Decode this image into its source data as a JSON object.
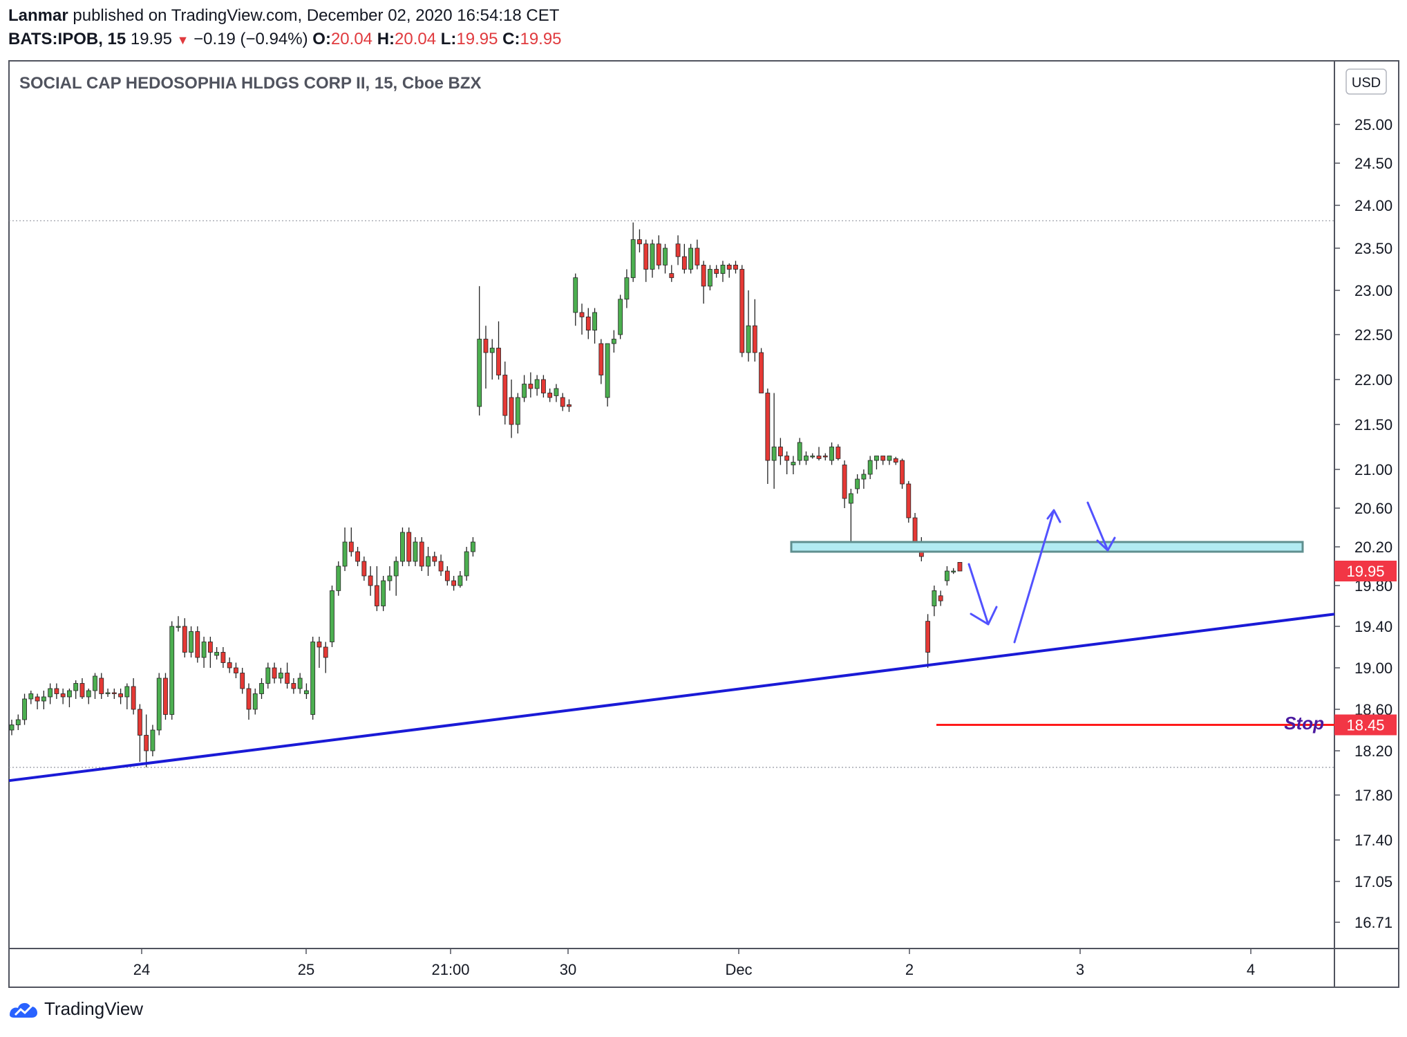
{
  "header": {
    "author": "Lanmar",
    "published_text": "published on TradingView.com, December 02, 2020 16:54:18 CET",
    "symbol": "BATS:IPOB, 15",
    "last_price": "19.95",
    "change": "−0.19 (−0.94%)",
    "o_label": "O:",
    "o_value": "20.04",
    "h_label": "H:",
    "h_value": "20.04",
    "l_label": "L:",
    "l_value": "19.95",
    "c_label": "C:",
    "c_value": "19.95"
  },
  "footer": {
    "brand": "TradingView"
  },
  "colors": {
    "up": "#53b987",
    "down": "#eb4d5c",
    "up_body": "#4caf50",
    "down_body": "#e53935",
    "trendline": "#1a1ad6",
    "arrows": "#5252ff",
    "stop_line": "#ff1a1a",
    "zone_fill": "#b2ebf2",
    "zone_border": "#5f8f8f",
    "price_tag": "#f23645"
  },
  "chart_data": {
    "type": "candlestick",
    "title": "SOCIAL CAP HEDOSOPHIA HLDGS CORP II, 15, Cboe BZX",
    "currency": "USD",
    "y_ticks": [
      "25.00",
      "24.50",
      "24.00",
      "23.50",
      "23.00",
      "22.50",
      "22.00",
      "21.50",
      "21.00",
      "20.60",
      "20.20",
      "19.80",
      "19.40",
      "19.00",
      "18.60",
      "18.20",
      "17.80",
      "17.40",
      "17.05",
      "16.71"
    ],
    "x_ticks": [
      "24",
      "25",
      "21:00",
      "30",
      "Dec",
      "2",
      "3",
      "4"
    ],
    "current_price_label": "19.95",
    "stop_price_label": "18.45",
    "stop_annotation": "Stop",
    "high_marker": 23.82,
    "low_marker": 18.05,
    "resistance_zone": [
      20.15,
      20.25
    ],
    "trendline": {
      "from": {
        "x": 0,
        "y": 17.93
      },
      "to": {
        "x": 1.0,
        "y": 19.52
      }
    },
    "candles": [
      [
        18.4,
        18.5,
        18.35,
        18.45
      ],
      [
        18.45,
        18.55,
        18.4,
        18.5
      ],
      [
        18.5,
        18.75,
        18.45,
        18.7
      ],
      [
        18.7,
        18.78,
        18.65,
        18.75
      ],
      [
        18.72,
        18.75,
        18.6,
        18.68
      ],
      [
        18.68,
        18.78,
        18.6,
        18.72
      ],
      [
        18.72,
        18.85,
        18.65,
        18.8
      ],
      [
        18.8,
        18.85,
        18.7,
        18.75
      ],
      [
        18.75,
        18.8,
        18.65,
        18.72
      ],
      [
        18.72,
        18.8,
        18.62,
        18.78
      ],
      [
        18.78,
        18.88,
        18.7,
        18.85
      ],
      [
        18.85,
        18.9,
        18.7,
        18.72
      ],
      [
        18.72,
        18.8,
        18.65,
        18.78
      ],
      [
        18.78,
        18.95,
        18.7,
        18.92
      ],
      [
        18.9,
        18.95,
        18.7,
        18.75
      ],
      [
        18.75,
        18.8,
        18.72,
        18.76
      ],
      [
        18.76,
        18.8,
        18.7,
        18.75
      ],
      [
        18.75,
        18.8,
        18.65,
        18.72
      ],
      [
        18.72,
        18.85,
        18.6,
        18.82
      ],
      [
        18.82,
        18.9,
        18.55,
        18.6
      ],
      [
        18.6,
        18.65,
        18.1,
        18.35
      ],
      [
        18.35,
        18.55,
        18.05,
        18.2
      ],
      [
        18.2,
        18.45,
        18.15,
        18.4
      ],
      [
        18.4,
        18.95,
        18.35,
        18.9
      ],
      [
        18.9,
        18.95,
        18.5,
        18.55
      ],
      [
        18.55,
        19.45,
        18.5,
        19.4
      ],
      [
        19.4,
        19.5,
        19.35,
        19.4
      ],
      [
        19.4,
        19.48,
        19.1,
        19.15
      ],
      [
        19.15,
        19.4,
        19.1,
        19.35
      ],
      [
        19.35,
        19.4,
        19.05,
        19.1
      ],
      [
        19.1,
        19.3,
        19.0,
        19.25
      ],
      [
        19.25,
        19.3,
        19.0,
        19.15
      ],
      [
        19.12,
        19.2,
        19.08,
        19.15
      ],
      [
        19.15,
        19.2,
        19.0,
        19.05
      ],
      [
        19.05,
        19.1,
        18.95,
        19.0
      ],
      [
        19.0,
        19.05,
        18.9,
        18.95
      ],
      [
        18.95,
        19.0,
        18.75,
        18.8
      ],
      [
        18.8,
        18.85,
        18.5,
        18.6
      ],
      [
        18.6,
        18.8,
        18.55,
        18.75
      ],
      [
        18.75,
        18.9,
        18.7,
        18.85
      ],
      [
        18.85,
        19.05,
        18.8,
        19.0
      ],
      [
        19.0,
        19.05,
        18.85,
        18.9
      ],
      [
        18.9,
        19.0,
        18.85,
        18.95
      ],
      [
        18.95,
        19.05,
        18.8,
        18.85
      ],
      [
        18.85,
        18.9,
        18.75,
        18.8
      ],
      [
        18.8,
        18.95,
        18.75,
        18.9
      ],
      [
        18.75,
        18.85,
        18.7,
        18.78
      ],
      [
        18.55,
        19.3,
        18.5,
        19.25
      ],
      [
        19.25,
        19.3,
        19.0,
        19.2
      ],
      [
        19.2,
        19.25,
        18.95,
        19.1
      ],
      [
        19.25,
        19.8,
        19.2,
        19.75
      ],
      [
        19.75,
        20.05,
        19.7,
        20.0
      ],
      [
        20.0,
        20.4,
        19.95,
        20.25
      ],
      [
        20.25,
        20.4,
        20.1,
        20.15
      ],
      [
        20.15,
        20.2,
        20.0,
        20.05
      ],
      [
        20.05,
        20.1,
        19.85,
        19.9
      ],
      [
        19.9,
        20.0,
        19.7,
        19.8
      ],
      [
        19.8,
        20.0,
        19.55,
        19.6
      ],
      [
        19.6,
        19.9,
        19.55,
        19.85
      ],
      [
        19.85,
        20.0,
        19.75,
        19.9
      ],
      [
        19.9,
        20.1,
        19.7,
        20.05
      ],
      [
        20.05,
        20.4,
        20.0,
        20.35
      ],
      [
        20.35,
        20.4,
        20.0,
        20.05
      ],
      [
        20.05,
        20.3,
        20.0,
        20.25
      ],
      [
        20.25,
        20.3,
        19.95,
        20.0
      ],
      [
        20.0,
        20.2,
        19.9,
        20.1
      ],
      [
        20.1,
        20.15,
        20.0,
        20.05
      ],
      [
        20.05,
        20.12,
        19.9,
        19.95
      ],
      [
        19.95,
        20.0,
        19.8,
        19.85
      ],
      [
        19.85,
        19.9,
        19.75,
        19.8
      ],
      [
        19.8,
        19.95,
        19.78,
        19.9
      ],
      [
        19.9,
        20.2,
        19.85,
        20.15
      ],
      [
        20.15,
        20.3,
        20.1,
        20.25
      ],
      [
        21.7,
        23.05,
        21.6,
        22.45
      ],
      [
        22.45,
        22.6,
        21.9,
        22.3
      ],
      [
        22.3,
        22.45,
        22.0,
        22.35
      ],
      [
        22.35,
        22.65,
        22.0,
        22.05
      ],
      [
        22.05,
        22.2,
        21.5,
        21.6
      ],
      [
        21.8,
        22.0,
        21.35,
        21.5
      ],
      [
        21.5,
        21.85,
        21.4,
        21.8
      ],
      [
        21.8,
        22.05,
        21.75,
        21.95
      ],
      [
        21.95,
        22.08,
        21.8,
        21.9
      ],
      [
        21.9,
        22.05,
        21.82,
        22.0
      ],
      [
        22.0,
        22.05,
        21.8,
        21.85
      ],
      [
        21.85,
        21.9,
        21.75,
        21.8
      ],
      [
        21.82,
        21.95,
        21.75,
        21.9
      ],
      [
        21.8,
        21.85,
        21.65,
        21.7
      ],
      [
        21.72,
        21.78,
        21.64,
        21.7
      ],
      [
        22.75,
        23.2,
        22.6,
        23.15
      ],
      [
        22.75,
        22.85,
        22.5,
        22.7
      ],
      [
        22.7,
        22.8,
        22.45,
        22.55
      ],
      [
        22.55,
        22.8,
        22.4,
        22.75
      ],
      [
        22.4,
        22.45,
        21.95,
        22.05
      ],
      [
        21.8,
        22.4,
        21.7,
        22.4
      ],
      [
        22.4,
        22.55,
        22.3,
        22.45
      ],
      [
        22.5,
        22.95,
        22.45,
        22.9
      ],
      [
        22.9,
        23.25,
        22.8,
        23.15
      ],
      [
        23.15,
        23.8,
        23.1,
        23.6
      ],
      [
        23.6,
        23.72,
        23.45,
        23.55
      ],
      [
        23.55,
        23.6,
        23.1,
        23.25
      ],
      [
        23.25,
        23.6,
        23.15,
        23.55
      ],
      [
        23.55,
        23.65,
        23.25,
        23.3
      ],
      [
        23.3,
        23.55,
        23.2,
        23.5
      ],
      [
        23.2,
        23.3,
        23.1,
        23.15
      ],
      [
        23.55,
        23.65,
        23.3,
        23.4
      ],
      [
        23.4,
        23.55,
        23.2,
        23.25
      ],
      [
        23.25,
        23.55,
        23.2,
        23.5
      ],
      [
        23.5,
        23.6,
        23.25,
        23.3
      ],
      [
        23.3,
        23.35,
        22.85,
        23.05
      ],
      [
        23.05,
        23.3,
        23.0,
        23.25
      ],
      [
        23.25,
        23.3,
        23.15,
        23.2
      ],
      [
        23.2,
        23.35,
        23.1,
        23.3
      ],
      [
        23.3,
        23.32,
        23.15,
        23.25
      ],
      [
        23.3,
        23.35,
        23.2,
        23.25
      ],
      [
        23.25,
        23.3,
        22.25,
        22.3
      ],
      [
        22.3,
        23.0,
        22.2,
        22.6
      ],
      [
        22.6,
        22.9,
        22.2,
        22.3
      ],
      [
        22.3,
        22.35,
        21.85,
        21.85
      ],
      [
        21.85,
        21.9,
        20.85,
        21.1
      ],
      [
        21.1,
        21.85,
        20.8,
        21.25
      ],
      [
        21.25,
        21.35,
        21.05,
        21.15
      ],
      [
        21.15,
        21.2,
        20.95,
        21.1
      ],
      [
        21.05,
        21.15,
        20.95,
        21.08
      ],
      [
        21.1,
        21.35,
        21.05,
        21.3
      ],
      [
        21.1,
        21.2,
        21.05,
        21.15
      ],
      [
        21.15,
        21.18,
        21.12,
        21.15
      ],
      [
        21.15,
        21.25,
        21.1,
        21.12
      ],
      [
        21.15,
        21.18,
        21.1,
        21.14
      ],
      [
        21.1,
        21.3,
        21.05,
        21.25
      ],
      [
        21.25,
        21.28,
        21.1,
        21.12
      ],
      [
        21.05,
        21.1,
        20.6,
        20.7
      ],
      [
        20.65,
        20.8,
        20.25,
        20.75
      ],
      [
        20.8,
        20.95,
        20.75,
        20.9
      ],
      [
        20.9,
        21.0,
        20.8,
        20.95
      ],
      [
        20.95,
        21.15,
        20.9,
        21.1
      ],
      [
        21.1,
        21.15,
        21.0,
        21.15
      ],
      [
        21.15,
        21.15,
        21.05,
        21.1
      ],
      [
        21.1,
        21.15,
        21.05,
        21.15
      ],
      [
        21.12,
        21.14,
        21.05,
        21.08
      ],
      [
        21.1,
        21.12,
        20.8,
        20.85
      ],
      [
        20.85,
        20.88,
        20.45,
        20.5
      ],
      [
        20.5,
        20.55,
        20.2,
        20.25
      ],
      [
        20.25,
        20.3,
        20.05,
        20.1
      ],
      [
        19.45,
        19.52,
        19.0,
        19.15
      ],
      [
        19.6,
        19.8,
        19.5,
        19.75
      ],
      [
        19.7,
        19.75,
        19.6,
        19.65
      ],
      [
        19.85,
        20.0,
        19.8,
        19.95
      ],
      [
        19.95,
        19.98,
        19.92,
        19.95
      ],
      [
        20.04,
        20.04,
        19.95,
        19.95
      ]
    ]
  }
}
